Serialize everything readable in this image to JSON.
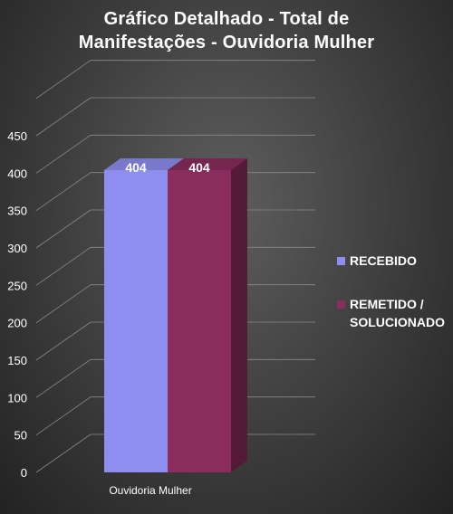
{
  "chart_data": {
    "type": "bar",
    "title_line1": "Gráfico Detalhado - Total de",
    "title_line2": "Manifestações - Ouvidoria Mulher",
    "categories": [
      "Ouvidoria Mulher"
    ],
    "series": [
      {
        "name": "RECEBIDO",
        "values": [
          404
        ],
        "color": "#8e8ef0",
        "label": "404"
      },
      {
        "name": "REMETIDO / SOLUCIONADO",
        "values": [
          404
        ],
        "color": "#8a2d5c",
        "label": "404"
      }
    ],
    "legend": {
      "item1": "RECEBIDO",
      "item2_line1": "REMETIDO /",
      "item2_line2": "SOLUCIONADO"
    },
    "ylim": [
      0,
      450
    ],
    "yticks": [
      "0",
      "50",
      "100",
      "150",
      "200",
      "250",
      "300",
      "350",
      "400",
      "450"
    ],
    "legend_position": "right",
    "grid": true
  }
}
